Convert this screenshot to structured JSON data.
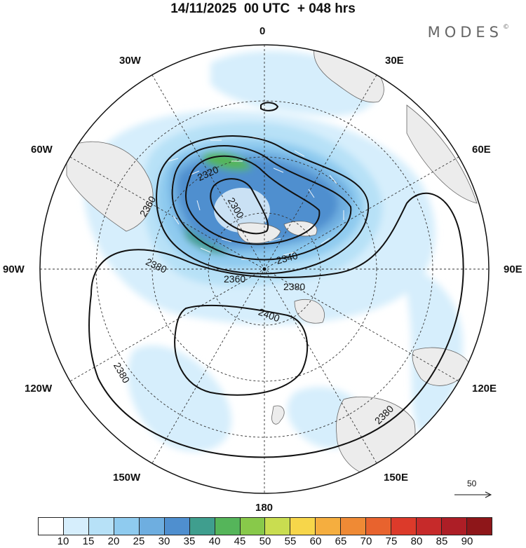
{
  "header": {
    "title": "14/11/2025  00 UTC  + 048 hrs",
    "brand": "MODES",
    "brand_mark": "©"
  },
  "longitude_labels": {
    "lon_0": "0",
    "lon_30e": "30E",
    "lon_60e": "60E",
    "lon_90e": "90E",
    "lon_120e": "120E",
    "lon_150e": "150E",
    "lon_180": "180",
    "lon_150w": "150W",
    "lon_120w": "120W",
    "lon_90w": "90W",
    "lon_60w": "60W",
    "lon_30w": "30W"
  },
  "contours": {
    "c2300": "2300",
    "c2320": "2320",
    "c2340": "2340",
    "c2360a": "2360",
    "c2360b": "2360",
    "c2380a": "2380",
    "c2380b": "2380",
    "c2380c": "2380",
    "c2380d": "2380",
    "c2400": "2400"
  },
  "wind_scale": {
    "value": "50"
  },
  "colorbar": {
    "colors": [
      "#ffffff",
      "#d6eefc",
      "#b7e1f7",
      "#8fcbef",
      "#6eaee0",
      "#4f8fcf",
      "#3f9e8e",
      "#55b55a",
      "#88c94a",
      "#c9dd50",
      "#f7d64a",
      "#f5ae3f",
      "#ef8a35",
      "#e8632e",
      "#dc3a2a",
      "#c62a2a",
      "#ad1e26",
      "#8e1619"
    ],
    "labels": [
      "10",
      "15",
      "20",
      "25",
      "30",
      "35",
      "40",
      "45",
      "50",
      "55",
      "60",
      "65",
      "70",
      "75",
      "80",
      "85",
      "90"
    ]
  }
}
